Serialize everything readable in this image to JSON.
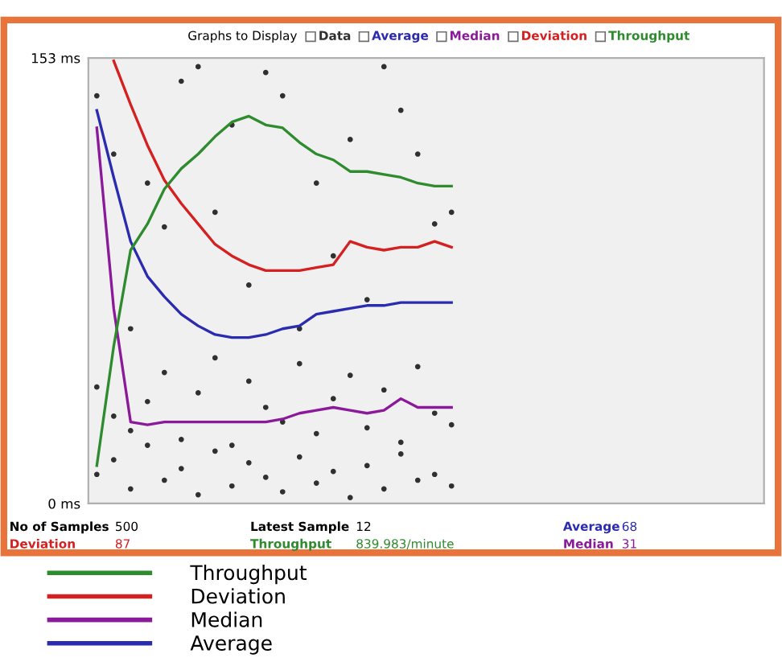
{
  "chart_data": {
    "type": "line",
    "title": "Graphs to Display",
    "categories": [
      null,
      null,
      null,
      null,
      null,
      null,
      null,
      null,
      null,
      null,
      null,
      null,
      null,
      null,
      null,
      null,
      null,
      null,
      null,
      null,
      null,
      null,
      null,
      null,
      null,
      null,
      null,
      null,
      null,
      null,
      null,
      null,
      null,
      null,
      null,
      null,
      null,
      null,
      null,
      null
    ],
    "series": [
      {
        "name": "Data",
        "type": "scatter",
        "color": "#303030",
        "values": [
          140,
          120,
          60,
          110,
          95,
          145,
          150,
          100,
          130,
          75,
          148,
          140,
          60,
          110,
          85,
          125,
          70,
          150,
          135,
          120,
          96,
          100,
          null,
          null,
          null,
          null,
          null,
          null,
          null,
          null,
          null,
          null,
          null,
          null,
          null,
          null,
          null,
          null,
          null,
          null
        ]
      },
      {
        "type": "scatter",
        "color": "#303030",
        "values": [
          10,
          15,
          5,
          20,
          8,
          12,
          3,
          18,
          6,
          14,
          9,
          4,
          16,
          7,
          11,
          2,
          13,
          5,
          17,
          8,
          10,
          6,
          null,
          null,
          null,
          null,
          null,
          null,
          null,
          null,
          null,
          null,
          null,
          null,
          null,
          null,
          null,
          null,
          null,
          null
        ]
      },
      {
        "type": "scatter",
        "color": "#303030",
        "values": [
          40,
          30,
          25,
          35,
          45,
          22,
          38,
          50,
          20,
          42,
          33,
          28,
          48,
          24,
          36,
          44,
          26,
          39,
          21,
          47,
          31,
          27,
          null,
          null,
          null,
          null,
          null,
          null,
          null,
          null,
          null,
          null,
          null,
          null,
          null,
          null,
          null,
          null,
          null,
          null
        ]
      },
      {
        "name": "Average",
        "color": "#2b2bb0",
        "values": [
          135,
          112,
          90,
          78,
          71,
          65,
          61,
          58,
          57,
          57,
          58,
          60,
          61,
          65,
          66,
          67,
          68,
          68,
          69,
          69,
          69,
          69,
          null,
          null,
          null,
          null,
          null,
          null,
          null,
          null,
          null,
          null,
          null,
          null,
          null,
          null,
          null,
          null,
          null,
          null
        ]
      },
      {
        "name": "Median",
        "color": "#8b1a9a",
        "values": [
          129,
          67,
          28,
          27,
          28,
          28,
          28,
          28,
          28,
          28,
          28,
          29,
          31,
          32,
          33,
          32,
          31,
          32,
          36,
          33,
          33,
          33,
          null,
          null,
          null,
          null,
          null,
          null,
          null,
          null,
          null,
          null,
          null,
          null,
          null,
          null,
          null,
          null,
          null,
          null
        ]
      },
      {
        "name": "Deviation",
        "color": "#d42020",
        "values": [
          null,
          152,
          137,
          123,
          111,
          103,
          96,
          89,
          85,
          82,
          80,
          80,
          80,
          81,
          82,
          90,
          88,
          87,
          88,
          88,
          90,
          88,
          null,
          null,
          null,
          null,
          null,
          null,
          null,
          null,
          null,
          null,
          null,
          null,
          null,
          null,
          null,
          null,
          null,
          null
        ]
      },
      {
        "name": "Throughput",
        "color": "#2e8b2e",
        "values": [
          13,
          54,
          87,
          96,
          108,
          115,
          120,
          126,
          131,
          133,
          130,
          129,
          124,
          120,
          118,
          114,
          114,
          113,
          112,
          110,
          109,
          109,
          null,
          null,
          null,
          null,
          null,
          null,
          null,
          null,
          null,
          null,
          null,
          null,
          null,
          null,
          null,
          null,
          null,
          null
        ]
      }
    ],
    "ylim": [
      0,
      153
    ],
    "yticks": [
      {
        "value": 0,
        "label": "0 ms"
      },
      {
        "value": 153,
        "label": "153 ms"
      }
    ],
    "tick_labels": "y",
    "grid": false,
    "legend": "bottom left",
    "annotations": [
      "No of Samples",
      "500",
      "Latest Sample",
      "12",
      "Average",
      "68",
      "Deviation",
      "87",
      "Throughput",
      "839.983/minute",
      "Median",
      "31"
    ]
  }
}
